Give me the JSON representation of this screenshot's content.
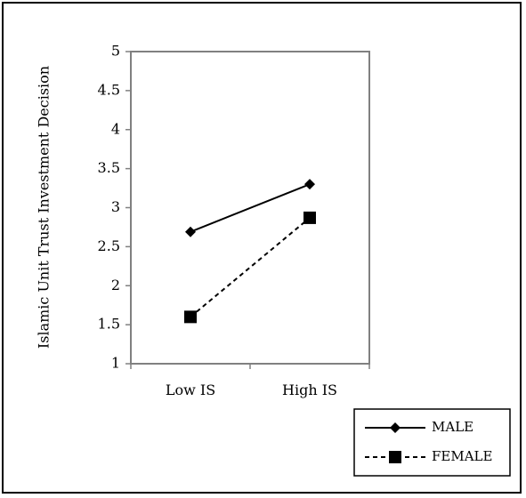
{
  "chart_data": {
    "type": "line",
    "categories": [
      "Low IS",
      "High IS"
    ],
    "ylabel": "Islamic Unit Trust Investment Decision",
    "ylim": [
      1,
      5
    ],
    "yticks": [
      "1",
      "1.5",
      "2",
      "2.5",
      "3",
      "3.5",
      "4",
      "4.5",
      "5"
    ],
    "grid": false,
    "legend_position": "bottom-right",
    "series": [
      {
        "name": "MALE",
        "values": [
          2.69,
          3.3
        ],
        "marker": "diamond",
        "line": "solid",
        "color": "#000000"
      },
      {
        "name": "FEMALE",
        "values": [
          1.6,
          2.87
        ],
        "marker": "square",
        "line": "dashed",
        "color": "#000000"
      }
    ]
  }
}
